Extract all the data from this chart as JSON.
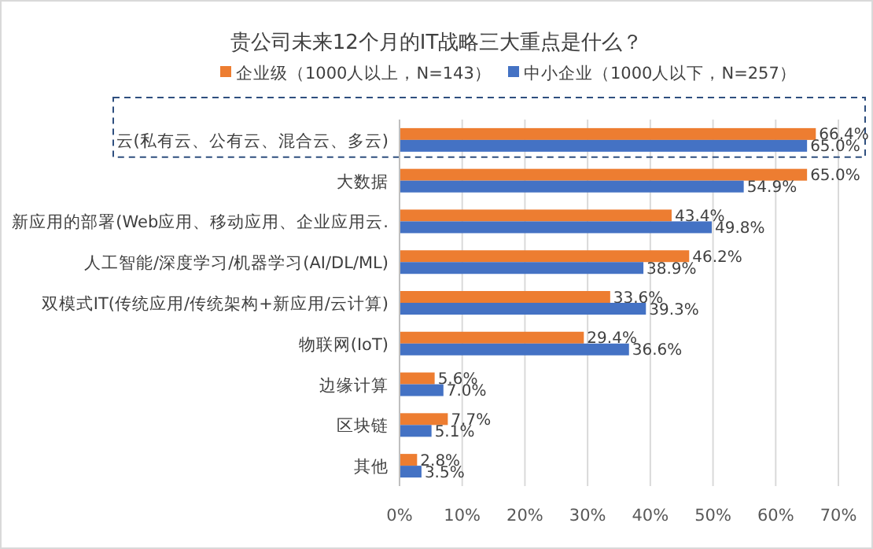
{
  "chart_data": {
    "type": "bar",
    "orientation": "horizontal",
    "title": "贵公司未来12个月的IT战略三大重点是什么？",
    "categories": [
      "云(私有云、公有云、混合云、多云)",
      "大数据",
      "新应用的部署(Web应用、移动应用、企业应用云.",
      "人工智能/深度学习/机器学习(AI/DL/ML)",
      "双模式IT(传统应用/传统架构+新应用/云计算)",
      "物联网(IoT)",
      "边缘计算",
      "区块链",
      "其他"
    ],
    "series": [
      {
        "name": "企业级（1000人以上，N=143）",
        "color": "#ed7d31",
        "values": [
          66.4,
          65.0,
          43.4,
          46.2,
          33.6,
          29.4,
          5.6,
          7.7,
          2.8
        ],
        "value_labels": [
          "66.4%",
          "65.0%",
          "43.4%",
          "46.2%",
          "33.6%",
          "29.4%",
          "5.6%",
          "7.7%",
          "2.8%"
        ]
      },
      {
        "name": "中小企业（1000人以下，N=257）",
        "color": "#4472c4",
        "values": [
          65.0,
          54.9,
          49.8,
          38.9,
          39.3,
          36.6,
          7.0,
          5.1,
          3.5
        ],
        "value_labels": [
          "65.0%",
          "54.9%",
          "49.8%",
          "38.9%",
          "39.3%",
          "36.6%",
          "7.0%",
          "5.1%",
          "3.5%"
        ]
      }
    ],
    "xlim": [
      0,
      70
    ],
    "xticks": [
      {
        "value": 0,
        "label": "0%"
      },
      {
        "value": 10,
        "label": "10%"
      },
      {
        "value": 20,
        "label": "20%"
      },
      {
        "value": 30,
        "label": "30%"
      },
      {
        "value": 40,
        "label": "40%"
      },
      {
        "value": 50,
        "label": "50%"
      },
      {
        "value": 60,
        "label": "60%"
      },
      {
        "value": 70,
        "label": "70%"
      }
    ],
    "grid": "x",
    "legend": "top"
  }
}
